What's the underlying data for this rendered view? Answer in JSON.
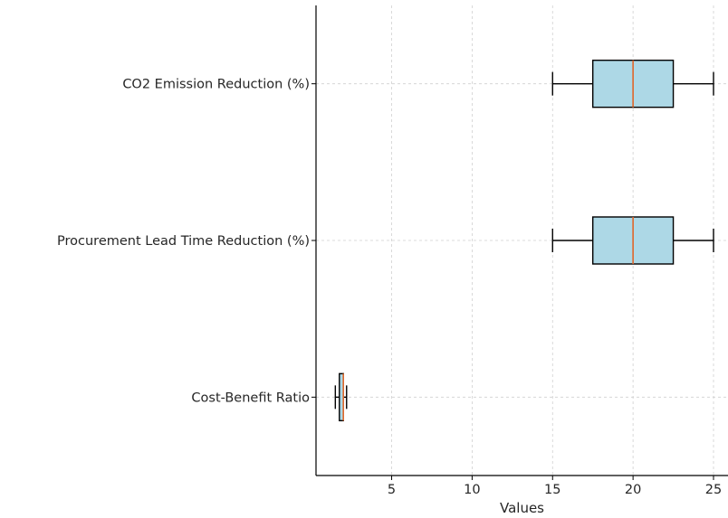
{
  "chart_data": {
    "type": "boxplot",
    "orientation": "horizontal",
    "xlabel": "Values",
    "ylabel": "",
    "xlim": [
      0.3,
      25.9
    ],
    "xticks": [
      5,
      10,
      15,
      20,
      25
    ],
    "grid": true,
    "colors": {
      "box_fill": "#add8e6",
      "box_edge": "#000000",
      "median": "#e0672a",
      "grid": "#d0d0d0",
      "axis": "#000000"
    },
    "categories": [
      "CO2 Emission Reduction (%)",
      "Procurement Lead Time Reduction (%)",
      "Cost-Benefit Ratio"
    ],
    "boxes": [
      {
        "name": "CO2 Emission Reduction (%)",
        "whisker_low": 15,
        "q1": 17.5,
        "median": 20,
        "q3": 22.5,
        "whisker_high": 25
      },
      {
        "name": "Procurement Lead Time Reduction (%)",
        "whisker_low": 15,
        "q1": 17.5,
        "median": 20,
        "q3": 22.5,
        "whisker_high": 25
      },
      {
        "name": "Cost-Benefit Ratio",
        "whisker_low": 1.5,
        "q1": 1.75,
        "median": 2.0,
        "q3": 2.0,
        "whisker_high": 2.2
      }
    ]
  }
}
